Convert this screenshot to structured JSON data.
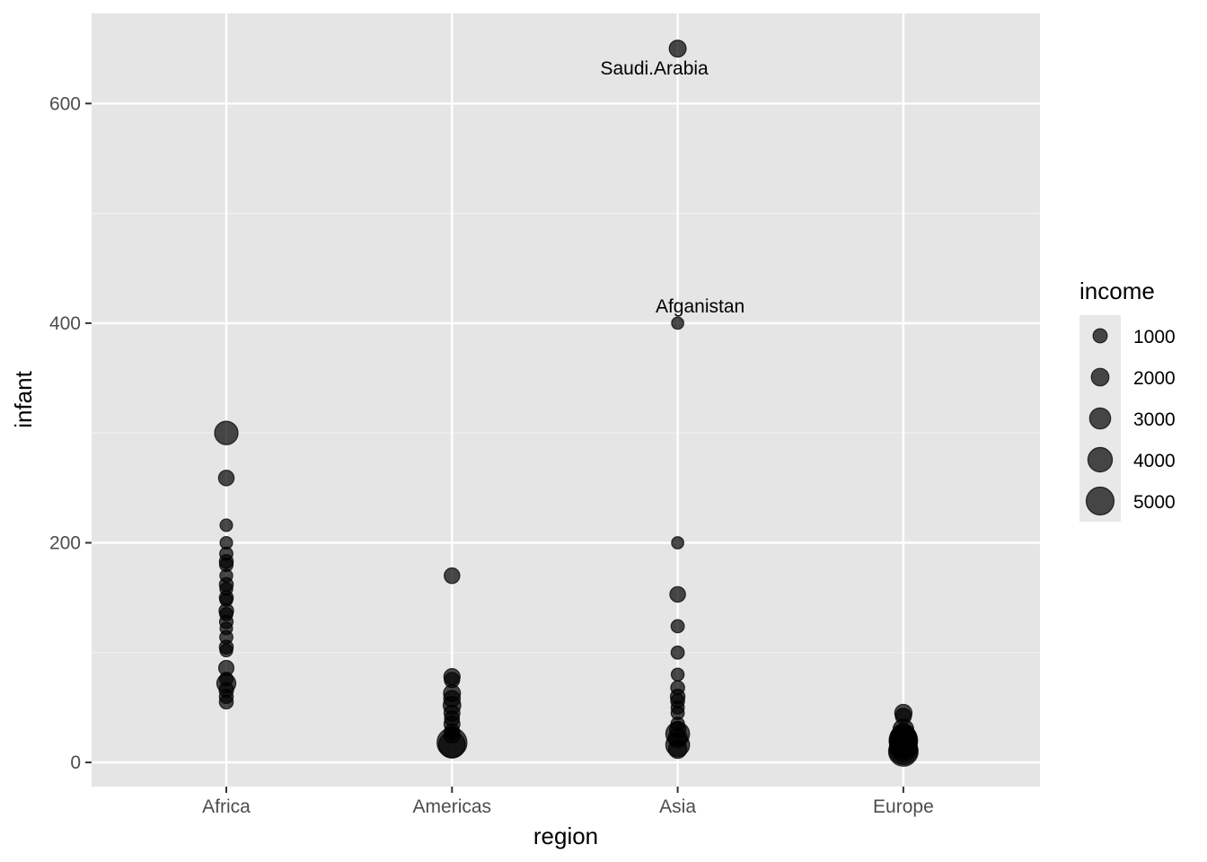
{
  "chart_data": {
    "type": "scatter",
    "xlabel": "region",
    "ylabel": "infant",
    "categories": [
      "Africa",
      "Americas",
      "Asia",
      "Europe"
    ],
    "ylim": [
      -22,
      682
    ],
    "y_ticks": [
      0,
      200,
      400,
      600
    ],
    "grid": true,
    "size_legend": {
      "title": "income",
      "values": [
        1000,
        2000,
        3000,
        4000,
        5000
      ],
      "labels": [
        "1000",
        "2000",
        "3000",
        "4000",
        "5000"
      ],
      "placement": "right"
    },
    "points": [
      {
        "x": "Africa",
        "y": 300,
        "income": 3700
      },
      {
        "x": "Africa",
        "y": 259,
        "income": 1400
      },
      {
        "x": "Africa",
        "y": 216,
        "income": 500
      },
      {
        "x": "Africa",
        "y": 200,
        "income": 500
      },
      {
        "x": "Africa",
        "y": 190,
        "income": 700
      },
      {
        "x": "Africa",
        "y": 183,
        "income": 900
      },
      {
        "x": "Africa",
        "y": 180,
        "income": 800
      },
      {
        "x": "Africa",
        "y": 170,
        "income": 600
      },
      {
        "x": "Africa",
        "y": 162,
        "income": 900
      },
      {
        "x": "Africa",
        "y": 158,
        "income": 600
      },
      {
        "x": "Africa",
        "y": 150,
        "income": 900
      },
      {
        "x": "Africa",
        "y": 148,
        "income": 600
      },
      {
        "x": "Africa",
        "y": 138,
        "income": 1100
      },
      {
        "x": "Africa",
        "y": 135,
        "income": 700
      },
      {
        "x": "Africa",
        "y": 128,
        "income": 800
      },
      {
        "x": "Africa",
        "y": 122,
        "income": 500
      },
      {
        "x": "Africa",
        "y": 114,
        "income": 700
      },
      {
        "x": "Africa",
        "y": 105,
        "income": 900
      },
      {
        "x": "Africa",
        "y": 102,
        "income": 600
      },
      {
        "x": "Africa",
        "y": 86,
        "income": 1300
      },
      {
        "x": "Africa",
        "y": 76,
        "income": 800
      },
      {
        "x": "Africa",
        "y": 72,
        "income": 2400
      },
      {
        "x": "Africa",
        "y": 66,
        "income": 1100
      },
      {
        "x": "Africa",
        "y": 60,
        "income": 900
      },
      {
        "x": "Africa",
        "y": 55,
        "income": 900
      },
      {
        "x": "Americas",
        "y": 170,
        "income": 1400
      },
      {
        "x": "Americas",
        "y": 78,
        "income": 1600
      },
      {
        "x": "Americas",
        "y": 75,
        "income": 1300
      },
      {
        "x": "Americas",
        "y": 63,
        "income": 1800
      },
      {
        "x": "Americas",
        "y": 58,
        "income": 1700
      },
      {
        "x": "Americas",
        "y": 52,
        "income": 2000
      },
      {
        "x": "Americas",
        "y": 45,
        "income": 1500
      },
      {
        "x": "Americas",
        "y": 40,
        "income": 1200
      },
      {
        "x": "Americas",
        "y": 35,
        "income": 1500
      },
      {
        "x": "Americas",
        "y": 28,
        "income": 1300
      },
      {
        "x": "Americas",
        "y": 25,
        "income": 1600
      },
      {
        "x": "Americas",
        "y": 18,
        "income": 5600
      },
      {
        "x": "Americas",
        "y": 16,
        "income": 4600
      },
      {
        "x": "Asia",
        "y": 650,
        "income": 1800
      },
      {
        "x": "Asia",
        "y": 400,
        "income": 400
      },
      {
        "x": "Asia",
        "y": 200,
        "income": 400
      },
      {
        "x": "Asia",
        "y": 153,
        "income": 1400
      },
      {
        "x": "Asia",
        "y": 124,
        "income": 700
      },
      {
        "x": "Asia",
        "y": 100,
        "income": 700
      },
      {
        "x": "Asia",
        "y": 80,
        "income": 600
      },
      {
        "x": "Asia",
        "y": 68,
        "income": 900
      },
      {
        "x": "Asia",
        "y": 60,
        "income": 1100
      },
      {
        "x": "Asia",
        "y": 56,
        "income": 900
      },
      {
        "x": "Asia",
        "y": 50,
        "income": 700
      },
      {
        "x": "Asia",
        "y": 45,
        "income": 700
      },
      {
        "x": "Asia",
        "y": 35,
        "income": 800
      },
      {
        "x": "Asia",
        "y": 30,
        "income": 1600
      },
      {
        "x": "Asia",
        "y": 26,
        "income": 3800
      },
      {
        "x": "Asia",
        "y": 22,
        "income": 2400
      },
      {
        "x": "Asia",
        "y": 16,
        "income": 3800
      },
      {
        "x": "Asia",
        "y": 12,
        "income": 2200
      },
      {
        "x": "Europe",
        "y": 45,
        "income": 1900
      },
      {
        "x": "Europe",
        "y": 42,
        "income": 1500
      },
      {
        "x": "Europe",
        "y": 30,
        "income": 2900
      },
      {
        "x": "Europe",
        "y": 25,
        "income": 3500
      },
      {
        "x": "Europe",
        "y": 22,
        "income": 4800
      },
      {
        "x": "Europe",
        "y": 20,
        "income": 5200
      },
      {
        "x": "Europe",
        "y": 18,
        "income": 5000
      },
      {
        "x": "Europe",
        "y": 15,
        "income": 4400
      },
      {
        "x": "Europe",
        "y": 13,
        "income": 4600
      },
      {
        "x": "Europe",
        "y": 11,
        "income": 5100
      },
      {
        "x": "Europe",
        "y": 10,
        "income": 5500
      }
    ],
    "annotations": [
      {
        "text": "Saudi.Arabia",
        "x": "Asia",
        "y": 650
      },
      {
        "text": "Afganistan",
        "x": "Asia",
        "y": 400
      }
    ],
    "colors": {
      "panel": "#e5e5e5",
      "grid": "#ffffff",
      "point": "#000000",
      "legend_key": "#e8e8e8"
    }
  }
}
